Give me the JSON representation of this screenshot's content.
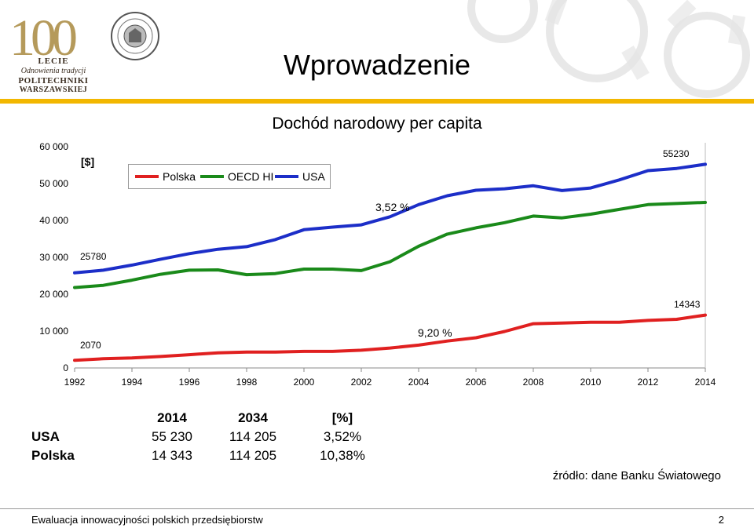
{
  "header": {
    "title": "Wprowadzenie",
    "logo_number": "100",
    "logo_line1": "LECIE",
    "logo_line2": "Odnowienia tradycji",
    "logo_line3": "POLITECHNIKI",
    "logo_line4": "WARSZAWSKIEJ",
    "accent_color": "#f2b700"
  },
  "chart_data": {
    "type": "line",
    "title": "Dochód narodowy per capita",
    "unit_label": "[$]",
    "x": [
      1992,
      1993,
      1994,
      1995,
      1996,
      1997,
      1998,
      1999,
      2000,
      2001,
      2002,
      2003,
      2004,
      2005,
      2006,
      2007,
      2008,
      2009,
      2010,
      2011,
      2012,
      2013,
      2014
    ],
    "x_ticks": [
      "1992",
      "1994",
      "1996",
      "1998",
      "2000",
      "2002",
      "2004",
      "2006",
      "2008",
      "2010",
      "2012",
      "2014"
    ],
    "y_ticks": [
      "0",
      "10 000",
      "20 000",
      "30 000",
      "40 000",
      "50 000",
      "60 000"
    ],
    "ylim": [
      0,
      60000
    ],
    "legend_position": "top-left",
    "series": [
      {
        "name": "Polska",
        "color": "#e02020",
        "values": [
          2070,
          2500,
          2700,
          3100,
          3600,
          4100,
          4300,
          4300,
          4500,
          4500,
          4800,
          5400,
          6200,
          7300,
          8200,
          9900,
          12000,
          12200,
          12400,
          12400,
          12900,
          13200,
          14343
        ]
      },
      {
        "name": "OECD HI",
        "color": "#1a8a1a",
        "values": [
          21800,
          22400,
          23800,
          25400,
          26500,
          26600,
          25300,
          25600,
          26800,
          26800,
          26400,
          28800,
          33000,
          36300,
          38000,
          39400,
          41200,
          40700,
          41700,
          43000,
          44300,
          44600,
          44900
        ]
      },
      {
        "name": "USA",
        "color": "#1c2ec8",
        "values": [
          25780,
          26500,
          27900,
          29500,
          31000,
          32200,
          32900,
          34800,
          37500,
          38200,
          38800,
          41000,
          44300,
          46700,
          48200,
          48600,
          49400,
          48100,
          48800,
          51000,
          53500,
          54100,
          55230
        ]
      }
    ],
    "annotations": {
      "usa_end": "55230",
      "usa_start": "25780",
      "pl_end": "14343",
      "pl_start": "2070",
      "usa_growth": "3,52 %",
      "pl_growth": "9,20 %"
    }
  },
  "summary": {
    "headers": [
      "2014",
      "2034",
      "[%]"
    ],
    "rows": [
      {
        "label": "USA",
        "v2014": "55 230",
        "v2034": "114 205",
        "pct": "3,52%"
      },
      {
        "label": "Polska",
        "v2014": "14 343",
        "v2034": "114 205",
        "pct": "10,38%"
      }
    ]
  },
  "source": "źródło: dane Banku Światowego",
  "footer": {
    "left": "Ewaluacja innowacyjności polskich przedsiębiorstw",
    "page": "2"
  }
}
